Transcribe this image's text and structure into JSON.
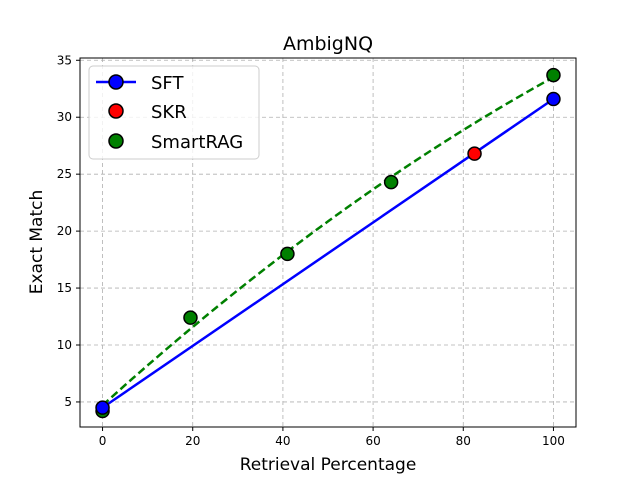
{
  "chart_data": {
    "type": "line",
    "title": "AmbigNQ",
    "xlabel": "Retrieval Percentage",
    "ylabel": "Exact Match",
    "xlim": [
      -5,
      105
    ],
    "ylim": [
      2.8,
      35.2
    ],
    "xticks": [
      0,
      20,
      40,
      60,
      80,
      100
    ],
    "yticks": [
      5,
      10,
      15,
      20,
      25,
      30,
      35
    ],
    "grid": true,
    "legend_position": "top-left",
    "series": [
      {
        "name": "SFT",
        "style": "line-with-markers",
        "color": "#0000ff",
        "marker_color": "#0000ff",
        "x": [
          0,
          100
        ],
        "y": [
          4.5,
          31.6
        ]
      },
      {
        "name": "SKR",
        "style": "markers",
        "marker_color": "#ff0000",
        "x": [
          82.5
        ],
        "y": [
          26.8
        ]
      },
      {
        "name": "SmartRAG",
        "style": "markers-with-dashed-fit",
        "color": "#008000",
        "marker_color": "#008000",
        "x": [
          0,
          19.5,
          41,
          64,
          100
        ],
        "y": [
          4.2,
          12.4,
          18.0,
          24.3,
          33.7
        ]
      }
    ]
  }
}
